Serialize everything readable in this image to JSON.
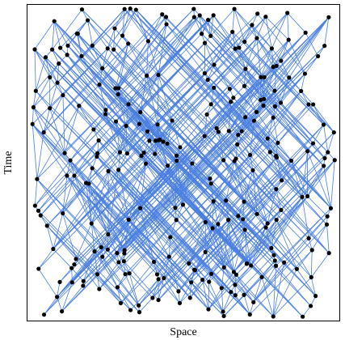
{
  "x_label": "Space",
  "y_label": "Time"
}
